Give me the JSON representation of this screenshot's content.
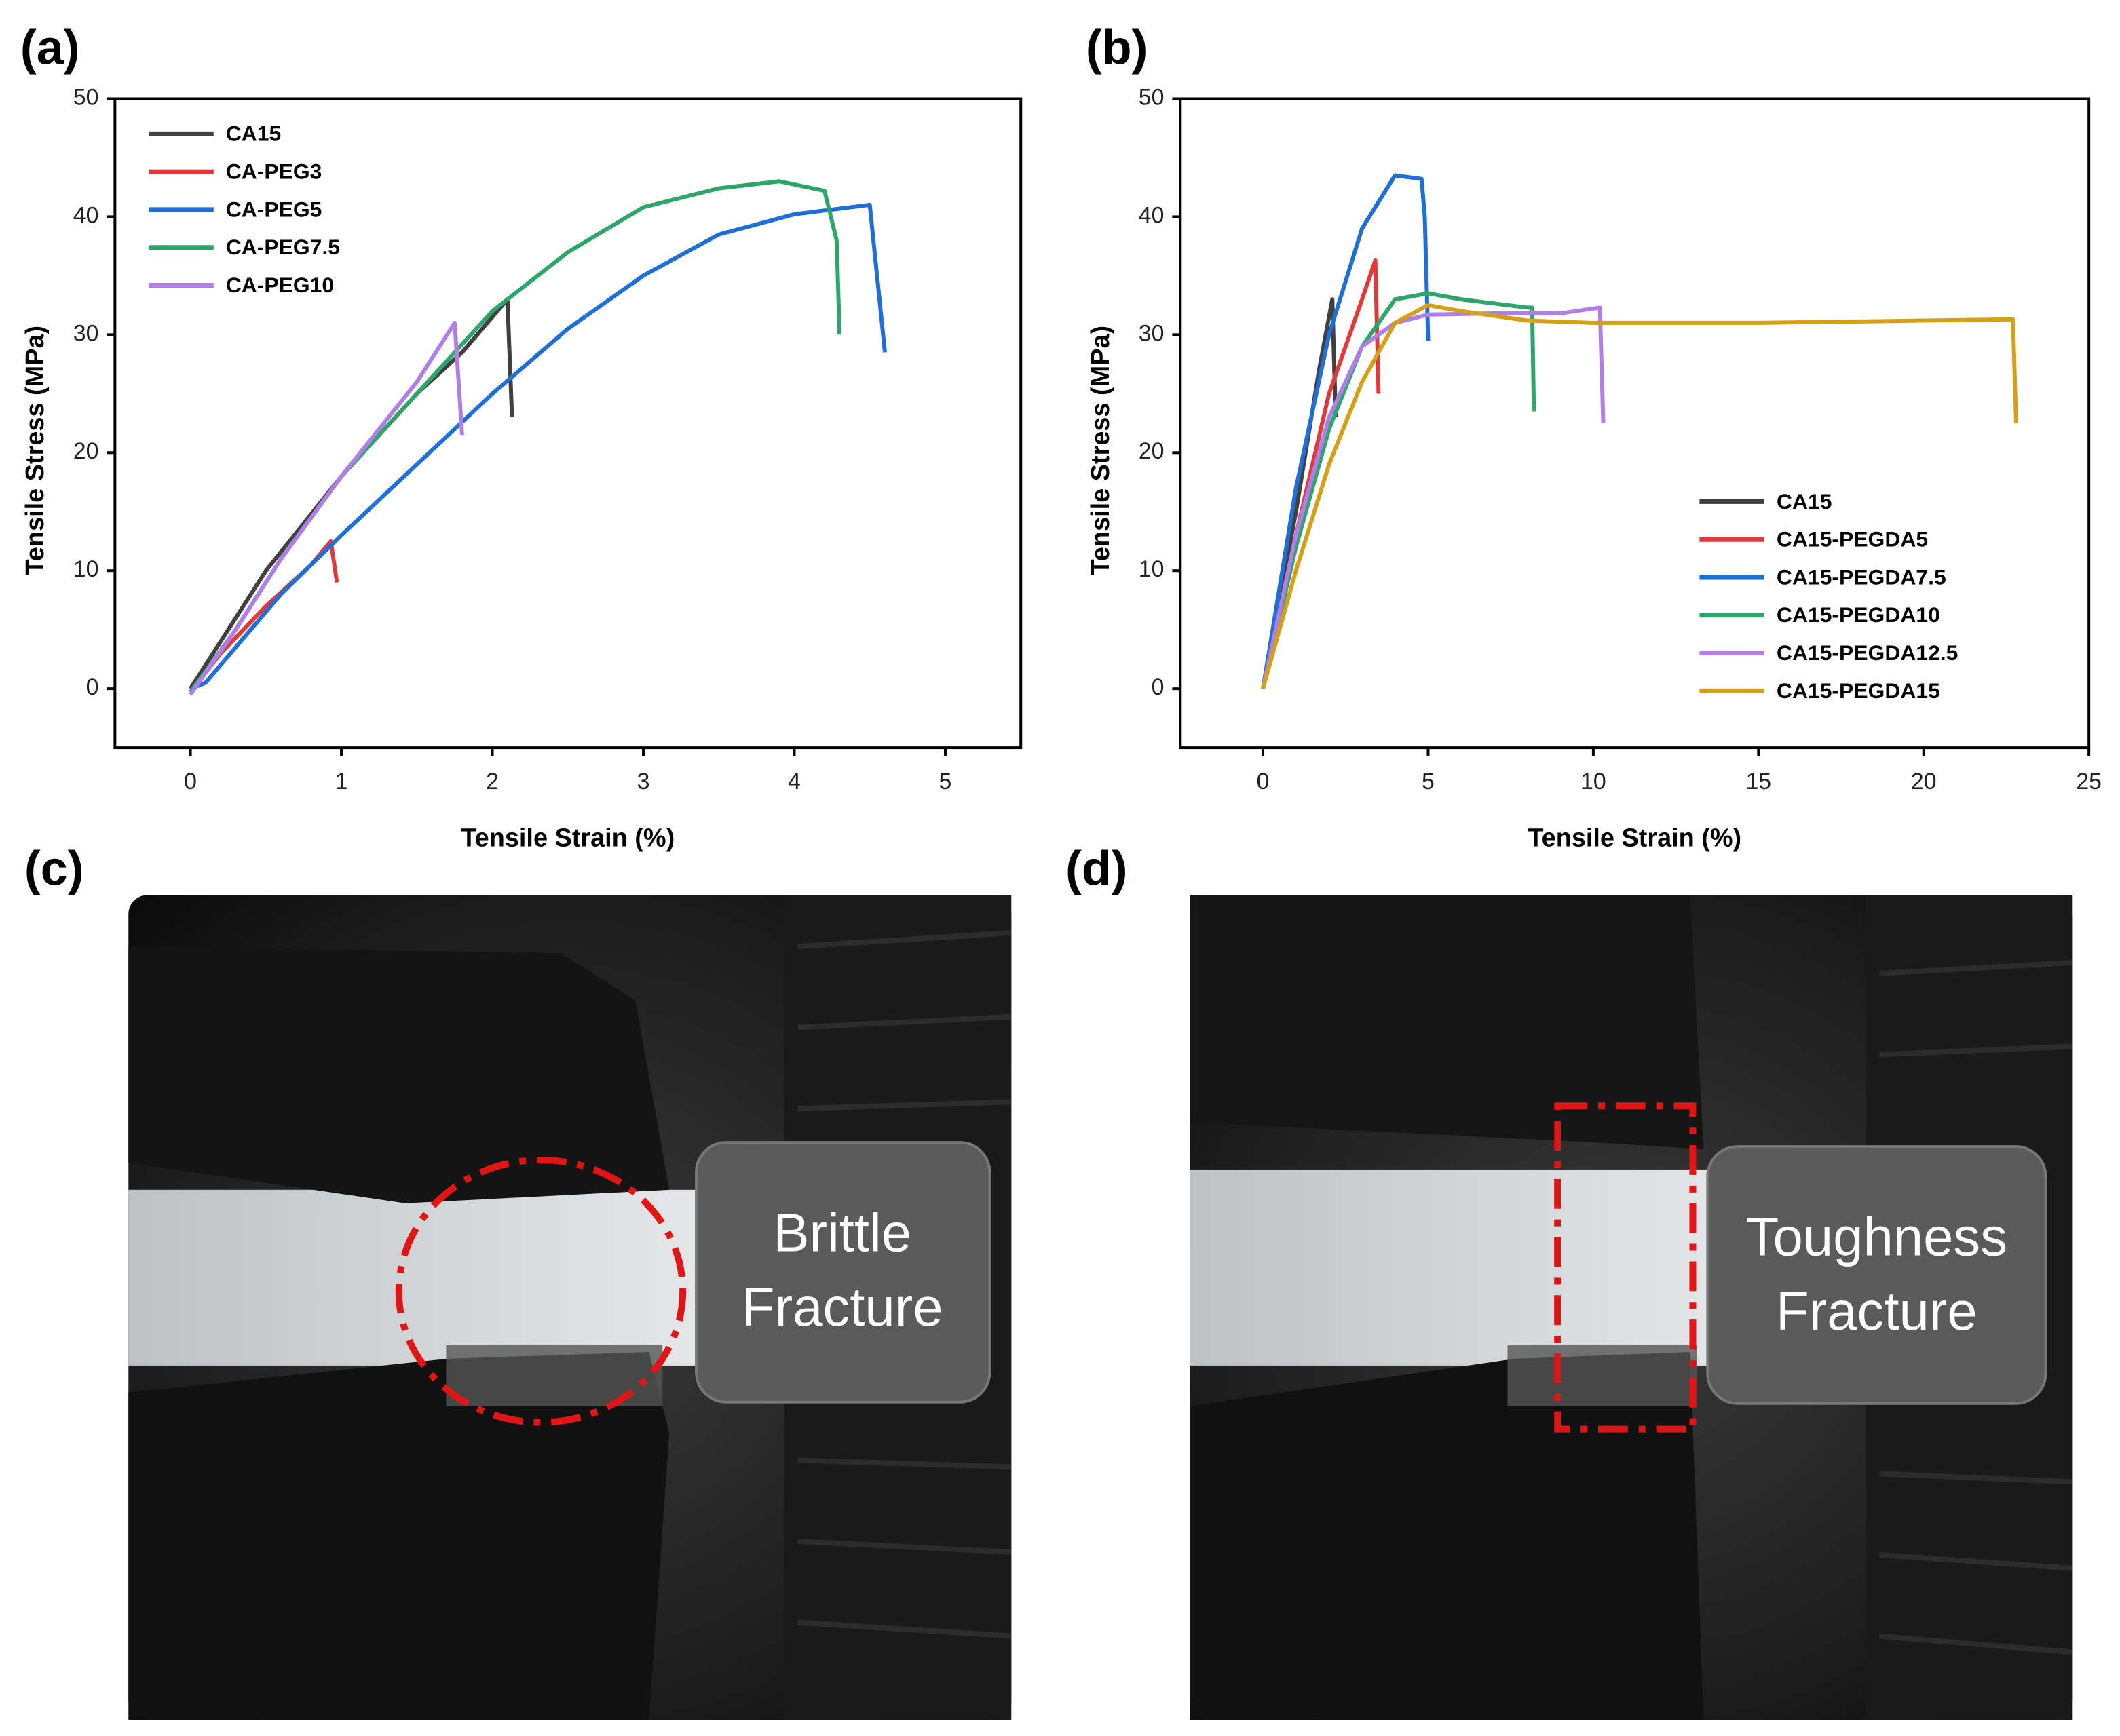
{
  "chart_data": [
    {
      "type": "line",
      "panel_label": "(a)",
      "x_label": "Tensile Strain  (%)",
      "y_label": "Tensile Stress (MPa)",
      "xlim": [
        -0.5,
        5.5
      ],
      "xticks": [
        0,
        1,
        2,
        3,
        4,
        5
      ],
      "ylim": [
        -5,
        50
      ],
      "yticks": [
        0,
        10,
        20,
        30,
        40,
        50
      ],
      "legend": "upper left",
      "series": [
        {
          "name": "CA15",
          "color": "#404040",
          "x": [
            0,
            0.2,
            0.5,
            1,
            1.5,
            1.8,
            2.1,
            2.13
          ],
          "values": [
            0,
            4,
            10,
            18,
            25,
            28.5,
            33,
            23
          ]
        },
        {
          "name": "CA-PEG3",
          "color": "#e23a3a",
          "x": [
            0,
            0.2,
            0.5,
            0.8,
            0.93,
            0.97
          ],
          "values": [
            -0.3,
            3,
            7,
            10.5,
            12.5,
            9
          ]
        },
        {
          "name": "CA-PEG5",
          "color": "#1f6fd6",
          "x": [
            0,
            0.1,
            0.3,
            0.6,
            1,
            1.5,
            2,
            2.5,
            3,
            3.5,
            4,
            4.5,
            4.6
          ],
          "values": [
            0,
            0.5,
            3.5,
            8,
            13,
            19,
            25,
            30.5,
            35,
            38.5,
            40.2,
            41,
            28.5
          ]
        },
        {
          "name": "CA-PEG7.5",
          "color": "#2ea56a",
          "x": [
            0,
            0.3,
            0.6,
            1,
            1.5,
            2,
            2.5,
            3,
            3.5,
            3.9,
            4.2,
            4.28,
            4.3
          ],
          "values": [
            -0.3,
            5,
            11,
            18,
            25,
            32,
            37,
            40.8,
            42.4,
            43,
            42.2,
            38,
            30
          ]
        },
        {
          "name": "CA-PEG10",
          "color": "#b07fe6",
          "x": [
            0,
            0.3,
            0.6,
            1,
            1.5,
            1.75,
            1.8
          ],
          "values": [
            -0.5,
            5,
            11,
            18,
            26,
            31,
            21.5
          ]
        }
      ]
    },
    {
      "type": "line",
      "panel_label": "(b)",
      "x_label": "Tensile Strain  (%)",
      "y_label": "Tensile Stress (MPa)",
      "xlim": [
        -2.5,
        25
      ],
      "xticks": [
        0,
        5,
        10,
        15,
        20,
        25
      ],
      "ylim": [
        -5,
        50
      ],
      "yticks": [
        0,
        10,
        20,
        30,
        40,
        50
      ],
      "legend": "lower right",
      "series": [
        {
          "name": "CA15",
          "color": "#404040",
          "x": [
            0,
            1,
            1.7,
            2.1,
            2.2
          ],
          "values": [
            0,
            15,
            27,
            33,
            23
          ]
        },
        {
          "name": "CA15-PEGDA5",
          "color": "#e23a3a",
          "x": [
            0,
            1,
            2,
            3,
            3.4,
            3.5
          ],
          "values": [
            0,
            13,
            25,
            33,
            36.3,
            25
          ]
        },
        {
          "name": "CA15-PEGDA7.5",
          "color": "#1f6fd6",
          "x": [
            0,
            1,
            2,
            3,
            4,
            4.8,
            4.9,
            5
          ],
          "values": [
            0,
            17,
            30,
            39,
            43.5,
            43.2,
            40,
            29.5
          ]
        },
        {
          "name": "CA15-PEGDA10",
          "color": "#2ea56a",
          "x": [
            0,
            1,
            2,
            3,
            4,
            5,
            6,
            8,
            8.15,
            8.2
          ],
          "values": [
            0,
            12,
            22,
            29,
            33,
            33.5,
            33,
            32.3,
            32.3,
            23.5
          ]
        },
        {
          "name": "CA15-PEGDA12.5",
          "color": "#b07fe6",
          "x": [
            0,
            1,
            2,
            3,
            4,
            5,
            7,
            9,
            10.2,
            10.3
          ],
          "values": [
            0,
            13,
            23,
            29,
            31,
            31.7,
            31.8,
            31.8,
            32.3,
            22.5
          ]
        },
        {
          "name": "CA15-PEGDA15",
          "color": "#d4a017",
          "x": [
            0,
            1,
            2,
            3,
            4,
            5,
            6,
            8,
            10,
            15,
            20,
            22.7,
            22.8
          ],
          "values": [
            0,
            10,
            19,
            26,
            31,
            32.5,
            32,
            31.2,
            31,
            31,
            31.2,
            31.3,
            22.5
          ]
        }
      ]
    }
  ],
  "photos": [
    {
      "label": "(c)",
      "caption_lines": [
        "Brittle",
        "Fracture"
      ]
    },
    {
      "label": "(d)",
      "caption_lines": [
        "Toughness",
        "Fracture"
      ]
    }
  ]
}
